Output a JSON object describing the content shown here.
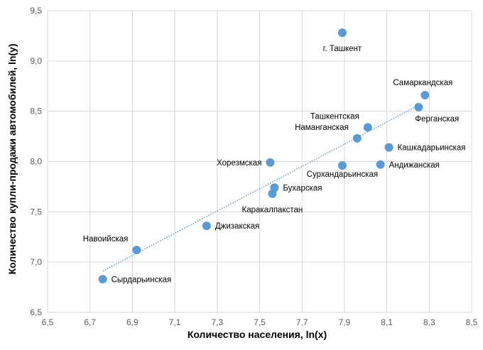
{
  "chart_data": {
    "type": "scatter",
    "title": "",
    "xlabel": "Количество населения, ln(x)",
    "ylabel": "Количество купли-продажи автомобилей, ln(y)",
    "xlim": [
      6.5,
      8.5
    ],
    "ylim": [
      6.5,
      9.5
    ],
    "xticks": [
      "6,5",
      "6,7",
      "6,9",
      "7,1",
      "7,3",
      "7,5",
      "7,7",
      "7,9",
      "8,1",
      "8,3",
      "8,5"
    ],
    "yticks": [
      "6,5",
      "7,0",
      "7,5",
      "8,0",
      "8,5",
      "9,0",
      "9,5"
    ],
    "grid": true,
    "marker_color": "#5B9BD5",
    "trendline": {
      "style": "dotted",
      "color": "#5B9BD5",
      "start": [
        6.76,
        6.91
      ],
      "end": [
        8.25,
        8.56
      ]
    },
    "points": [
      {
        "label": "г. Ташкент",
        "x": 7.89,
        "y": 9.28,
        "label_pos": "below"
      },
      {
        "label": "Самаркандская",
        "x": 8.28,
        "y": 8.66,
        "label_pos": "above"
      },
      {
        "label": "Ферганская",
        "x": 8.25,
        "y": 8.54,
        "label_pos": "below-right"
      },
      {
        "label": "Ташкентская",
        "x": 8.01,
        "y": 8.34,
        "label_pos": "above-left"
      },
      {
        "label": "Наманганская",
        "x": 7.96,
        "y": 8.23,
        "label_pos": "above-left"
      },
      {
        "label": "Кашкадарьинская",
        "x": 8.11,
        "y": 8.14,
        "label_pos": "right"
      },
      {
        "label": "Хорезмская",
        "x": 7.55,
        "y": 7.99,
        "label_pos": "left"
      },
      {
        "label": "Сурхандарьинская",
        "x": 7.89,
        "y": 7.96,
        "label_pos": "below-right"
      },
      {
        "label": "Андижанская",
        "x": 8.07,
        "y": 7.97,
        "label_pos": "right"
      },
      {
        "label": "Бухарская",
        "x": 7.57,
        "y": 7.74,
        "label_pos": "right"
      },
      {
        "label": "Каракалпакстан",
        "x": 7.56,
        "y": 7.68,
        "label_pos": "below"
      },
      {
        "label": "Джизакская",
        "x": 7.25,
        "y": 7.36,
        "label_pos": "right"
      },
      {
        "label": "Навоийская",
        "x": 6.92,
        "y": 7.12,
        "label_pos": "above-left"
      },
      {
        "label": "Сырдарьинская",
        "x": 6.76,
        "y": 6.83,
        "label_pos": "right"
      }
    ]
  }
}
